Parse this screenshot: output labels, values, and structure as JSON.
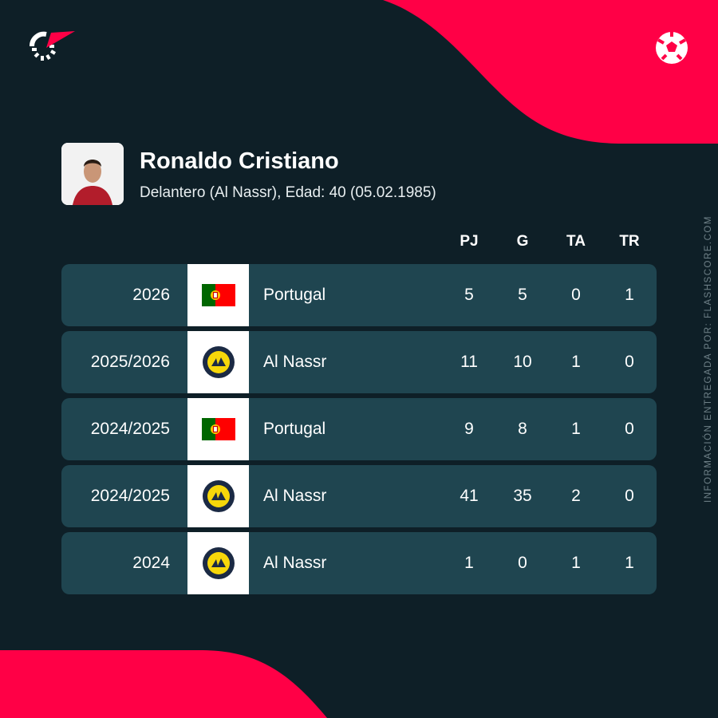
{
  "player": {
    "name": "Ronaldo Cristiano",
    "subtitle": "Delantero (Al Nassr), Edad: 40 (05.02.1985)"
  },
  "columns": [
    "PJ",
    "G",
    "TA",
    "TR"
  ],
  "rows": [
    {
      "season": "2026",
      "team": "Portugal",
      "logo": "portugal-flag",
      "pj": "5",
      "g": "5",
      "ta": "0",
      "tr": "1"
    },
    {
      "season": "2025/2026",
      "team": "Al Nassr",
      "logo": "al-nassr-crest",
      "pj": "11",
      "g": "10",
      "ta": "1",
      "tr": "0"
    },
    {
      "season": "2024/2025",
      "team": "Portugal",
      "logo": "portugal-flag",
      "pj": "9",
      "g": "8",
      "ta": "1",
      "tr": "0"
    },
    {
      "season": "2024/2025",
      "team": "Al Nassr",
      "logo": "al-nassr-crest",
      "pj": "41",
      "g": "35",
      "ta": "2",
      "tr": "0"
    },
    {
      "season": "2024",
      "team": "Al Nassr",
      "logo": "al-nassr-crest",
      "pj": "1",
      "g": "0",
      "ta": "1",
      "tr": "1"
    }
  ],
  "source": "INFORMACIÓN ENTREGADA POR: FLASHSCORE.COM",
  "colors": {
    "background": "#0e1f27",
    "row": "#1f4550",
    "accent": "#ff0046"
  }
}
